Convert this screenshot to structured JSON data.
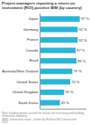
{
  "chart_data": {
    "type": "bar",
    "orientation": "horizontal",
    "title": "Project managers reporting a return on\ninvestment (ROI) positive BIM (by country)",
    "categories": [
      "Japan",
      "Germany",
      "France",
      "Canada",
      "Brazil",
      "Australia/New Zealand",
      "United States",
      "United Kingdom",
      "South Korea"
    ],
    "values": [
      97,
      92,
      92,
      87,
      89,
      79,
      74,
      59,
      49
    ],
    "value_labels": [
      "97 %",
      "92 %",
      "92 %",
      "87 %",
      "89 %",
      "79 %",
      "74 %",
      "59 %",
      "49 %"
    ],
    "data_labels": true,
    "color": "#29b6d8",
    "xlim": [
      0,
      112
    ],
    "tick_labels": "y",
    "grid": false,
    "annotations": [
      "Note: building owners account for results are increasing with building information modeling\n(BIM). Information report - written by McGraw Hill Construction\n2013."
    ]
  }
}
